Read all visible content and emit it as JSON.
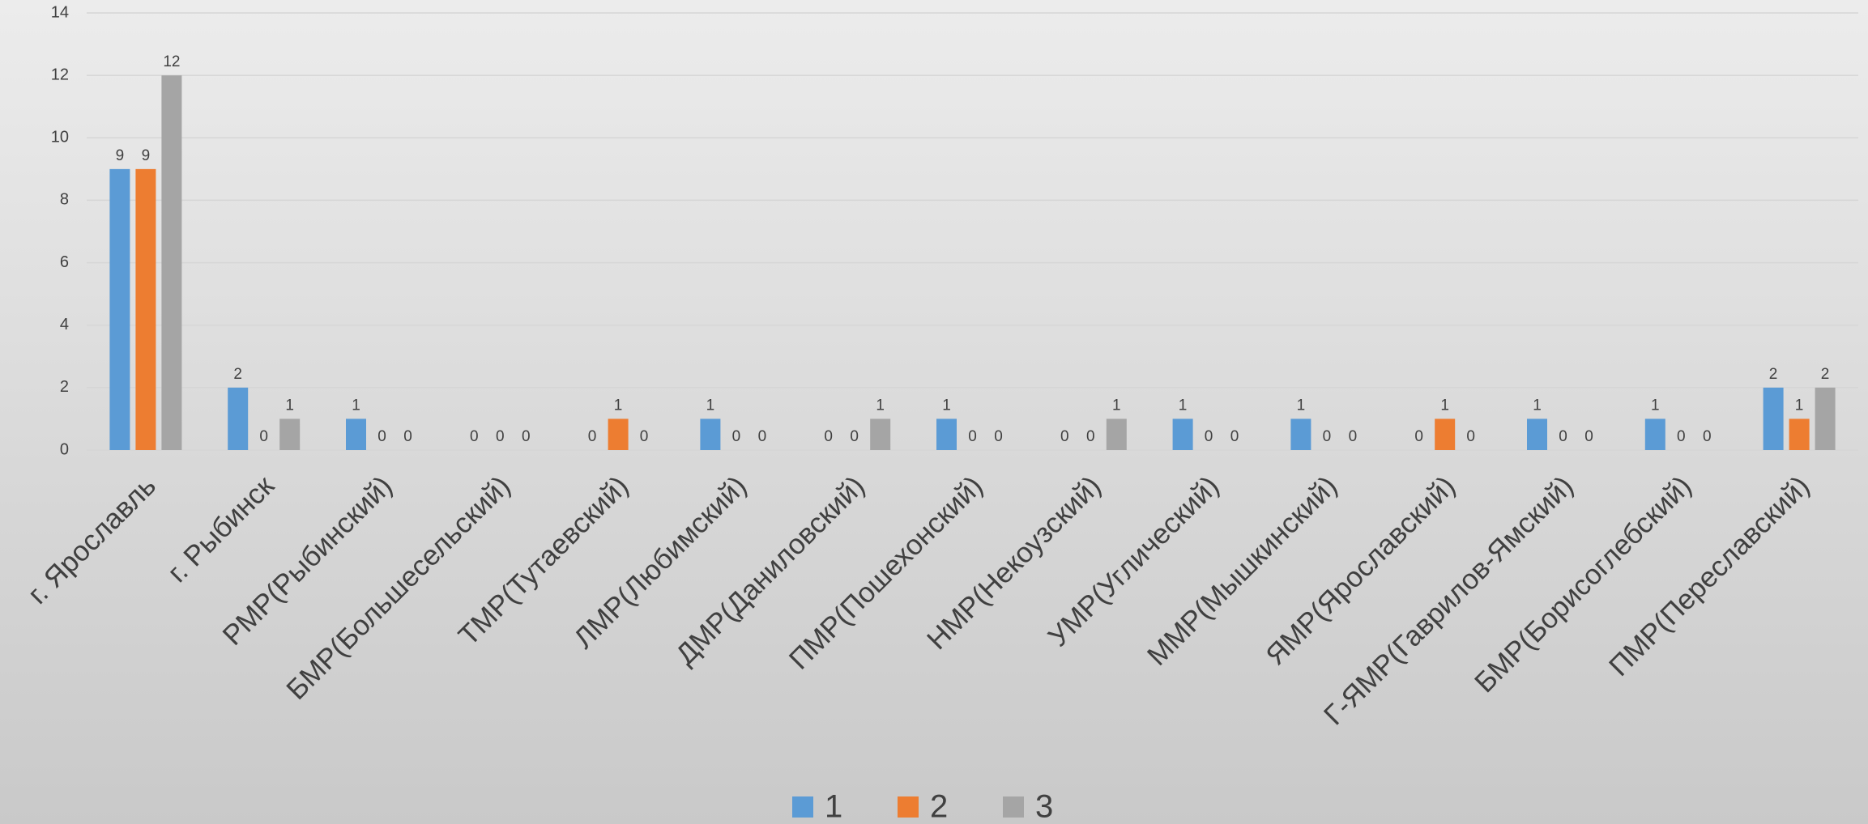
{
  "chart_data": {
    "type": "bar",
    "categories": [
      "г. Ярославль",
      "г. Рыбинск",
      "РМР(Рыбинский)",
      "БМР(Большесельский)",
      "ТМР(Тутаевский)",
      "ЛМР(Любимский)",
      "ДМР(Даниловский)",
      "ПМР(Пошехонский)",
      "НМР(Некоузский)",
      "УМР(Углический)",
      "ММР(Мышкинский)",
      "ЯМР(Ярославский)",
      "Г-ЯМР(Гаврилов-Ямский)",
      "БМР(Борисоглебский)",
      "ПМР(Переславский)"
    ],
    "series": [
      {
        "name": "1",
        "color": "#5b9bd5",
        "values": [
          9,
          2,
          1,
          0,
          0,
          1,
          0,
          1,
          0,
          1,
          1,
          0,
          1,
          1,
          2
        ]
      },
      {
        "name": "2",
        "color": "#ed7d31",
        "values": [
          9,
          0,
          0,
          0,
          1,
          0,
          0,
          0,
          0,
          0,
          0,
          1,
          0,
          0,
          1
        ]
      },
      {
        "name": "3",
        "color": "#a5a5a5",
        "values": [
          12,
          1,
          0,
          0,
          0,
          0,
          1,
          0,
          1,
          0,
          0,
          0,
          0,
          0,
          2
        ]
      }
    ],
    "ylim": [
      0,
      14
    ],
    "yticks": [
      0,
      2,
      4,
      6,
      8,
      10,
      12,
      14
    ],
    "grid": true,
    "legend": "bottom"
  }
}
